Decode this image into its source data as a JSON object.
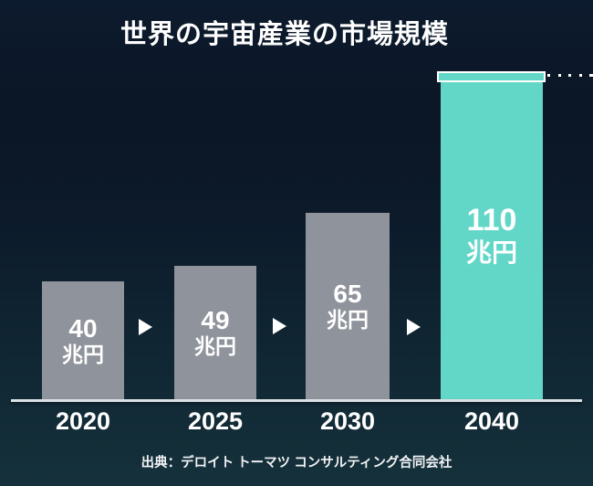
{
  "title": "世界の宇宙産業の市場規模",
  "source": "出典：デロイト トーマツ コンサルティング合同会社",
  "colors": {
    "background_top": "#0d1b2e",
    "background_bottom": "#15313b",
    "bar_gray": "#8f939b",
    "bar_highlight_teal": "#62d7c8",
    "text_white": "#ffffff",
    "axis_line": "#dde1e6"
  },
  "icons": {
    "between_bars": "right-triangle-arrow",
    "bar_top_break": "white-outlined-cap-with-trailing-dots"
  },
  "chart_data": {
    "type": "bar",
    "title": "世界の宇宙産業の市場規模",
    "categories": [
      "2020",
      "2025",
      "2030",
      "2040"
    ],
    "values": [
      40,
      49,
      65,
      110
    ],
    "unit": "兆円",
    "xlabel": "",
    "ylabel": "",
    "grid": false,
    "legend": false,
    "highlight_category": "2040",
    "broken_bar_category": "2040",
    "bars": [
      {
        "year": "2020",
        "value": "40",
        "unit": "兆円"
      },
      {
        "year": "2025",
        "value": "49",
        "unit": "兆円"
      },
      {
        "year": "2030",
        "value": "65",
        "unit": "兆円"
      },
      {
        "year": "2040",
        "value": "110",
        "unit": "兆円"
      }
    ]
  }
}
